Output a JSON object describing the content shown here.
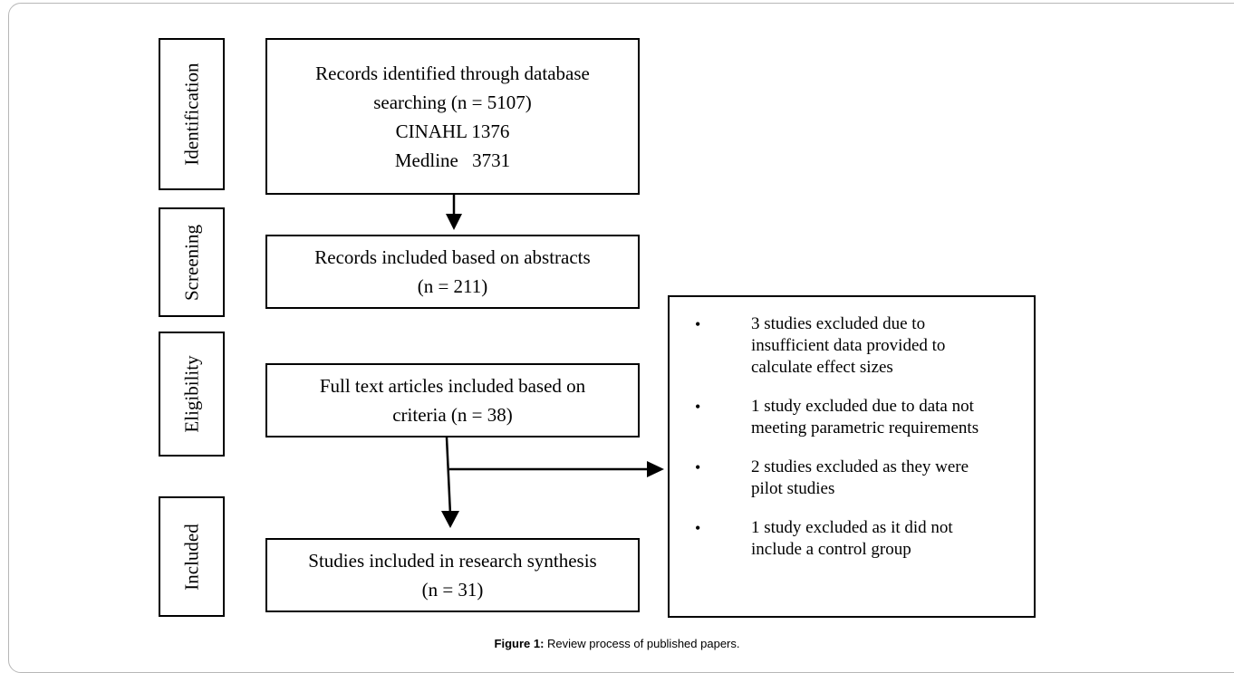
{
  "phases": {
    "identification": "Identification",
    "screening": "Screening",
    "eligibility": "Eligibility",
    "included": "Included"
  },
  "boxes": {
    "records_identified": {
      "line1": "Records identified through database",
      "line2": "searching (n = 5107)",
      "cinahl_label": "CINAHL",
      "cinahl_value": "1376",
      "medline_label": "Medline",
      "medline_value": "3731"
    },
    "abstracts": {
      "line1": "Records included based on abstracts",
      "line2": "(n = 211)"
    },
    "full_text": {
      "line1": "Full text articles included based on",
      "line2": "criteria (n = 38)"
    },
    "synthesis": {
      "line1": "Studies included in research synthesis",
      "line2": "(n = 31)"
    }
  },
  "exclusions": [
    {
      "bullet": "•",
      "line1": "3 studies excluded due to",
      "line2": "insufficient data  provided to",
      "line3": "calculate effect sizes"
    },
    {
      "bullet": "•",
      "line1": "1 study excluded due to data not",
      "line2": "meeting parametric requirements",
      "line3": ""
    },
    {
      "bullet": "•",
      "line1": "2 studies excluded as they were",
      "line2": "pilot studies",
      "line3": ""
    },
    {
      "bullet": "•",
      "line1": "1 study excluded as it did not",
      "line2": "include a control group",
      "line3": ""
    }
  ],
  "caption": {
    "label": "Figure 1:",
    "text": " Review process of published papers."
  }
}
